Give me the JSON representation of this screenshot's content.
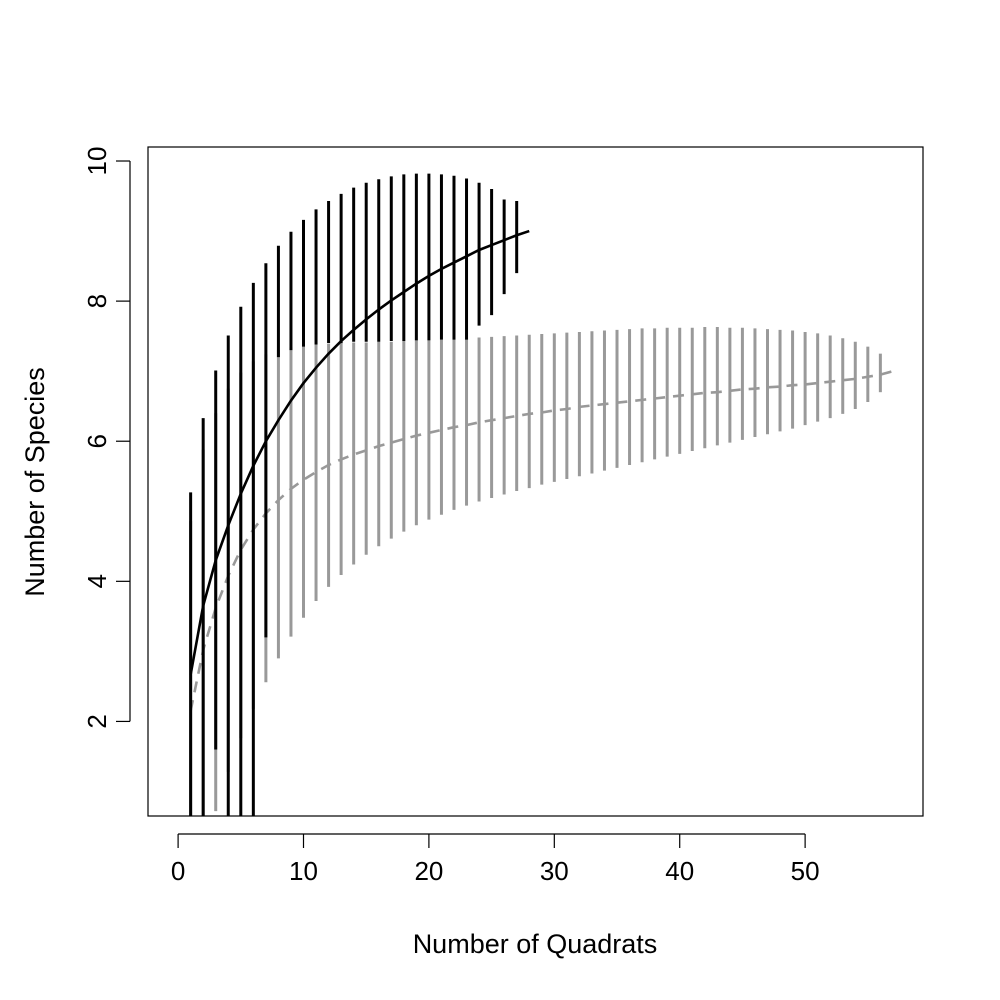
{
  "chart_data": {
    "type": "line",
    "title": "",
    "xlabel": "Number of Quadrats",
    "ylabel": "Number of Species",
    "xlim": [
      -2.4,
      59.4
    ],
    "ylim": [
      0.65,
      10.2
    ],
    "x_ticks": [
      0,
      10,
      20,
      30,
      40,
      50
    ],
    "y_ticks": [
      2,
      4,
      6,
      8,
      10
    ],
    "grid": false,
    "legend": "none",
    "series": [
      {
        "color": "#000000",
        "line_style": "solid",
        "x": [
          1,
          2,
          3,
          4,
          5,
          6,
          7,
          8,
          9,
          10,
          11,
          12,
          13,
          14,
          15,
          16,
          17,
          18,
          19,
          20,
          21,
          22,
          23,
          24,
          25,
          26,
          27,
          28
        ],
        "y": [
          2.67,
          3.65,
          4.3,
          4.8,
          5.25,
          5.65,
          6.0,
          6.3,
          6.58,
          6.83,
          7.05,
          7.25,
          7.43,
          7.59,
          7.74,
          7.88,
          8.01,
          8.13,
          8.25,
          8.36,
          8.46,
          8.55,
          8.64,
          8.73,
          8.8,
          8.87,
          8.94,
          9.0
        ],
        "error_lower": [
          0.0,
          0.0,
          1.6,
          0.0,
          0.0,
          0.0,
          3.2,
          7.2,
          7.3,
          7.35,
          7.38,
          7.4,
          7.4,
          7.42,
          7.42,
          7.42,
          7.43,
          7.43,
          7.44,
          7.44,
          7.45,
          7.45,
          7.45,
          7.65,
          7.8,
          8.1,
          8.4,
          null
        ],
        "error_upper": [
          5.27,
          6.33,
          7.01,
          7.51,
          7.92,
          8.26,
          8.54,
          8.79,
          8.99,
          9.16,
          9.31,
          9.43,
          9.53,
          9.62,
          9.69,
          9.74,
          9.78,
          9.81,
          9.82,
          9.82,
          9.81,
          9.79,
          9.75,
          9.69,
          9.6,
          9.45,
          9.43,
          null
        ]
      },
      {
        "color": "#999999",
        "line_style": "dashed",
        "x": [
          1,
          2,
          3,
          4,
          5,
          6,
          7,
          8,
          9,
          10,
          11,
          12,
          13,
          14,
          15,
          16,
          17,
          18,
          19,
          20,
          21,
          22,
          23,
          24,
          25,
          26,
          27,
          28,
          29,
          30,
          31,
          32,
          33,
          34,
          35,
          36,
          37,
          38,
          39,
          40,
          41,
          42,
          43,
          44,
          45,
          46,
          47,
          48,
          49,
          50,
          51,
          52,
          53,
          54,
          55,
          56,
          57
        ],
        "y": [
          2.15,
          3.02,
          3.62,
          4.08,
          4.45,
          4.74,
          4.97,
          5.16,
          5.32,
          5.45,
          5.56,
          5.66,
          5.74,
          5.81,
          5.87,
          5.93,
          5.98,
          6.03,
          6.08,
          6.12,
          6.16,
          6.2,
          6.23,
          6.27,
          6.3,
          6.33,
          6.36,
          6.39,
          6.41,
          6.44,
          6.46,
          6.49,
          6.51,
          6.53,
          6.55,
          6.57,
          6.59,
          6.61,
          6.63,
          6.65,
          6.67,
          6.69,
          6.7,
          6.72,
          6.74,
          6.75,
          6.77,
          6.78,
          6.8,
          6.81,
          6.83,
          6.85,
          6.87,
          6.89,
          6.92,
          6.95,
          7.0
        ],
        "error_lower": [
          0.65,
          0.65,
          0.72,
          1.28,
          1.76,
          2.18,
          2.56,
          2.9,
          3.21,
          3.48,
          3.72,
          3.92,
          4.09,
          4.24,
          4.38,
          4.5,
          4.61,
          4.71,
          4.8,
          4.88,
          4.95,
          5.02,
          5.08,
          5.14,
          5.19,
          5.24,
          5.29,
          5.33,
          5.38,
          5.42,
          5.46,
          5.5,
          5.54,
          5.58,
          5.62,
          5.66,
          5.7,
          5.74,
          5.78,
          5.82,
          5.86,
          5.9,
          5.94,
          5.98,
          6.02,
          6.06,
          6.1,
          6.14,
          6.18,
          6.23,
          6.28,
          6.33,
          6.39,
          6.46,
          6.56,
          6.7,
          null
        ],
        "error_upper": [
          4.86,
          5.88,
          6.4,
          6.75,
          6.98,
          7.14,
          7.24,
          7.3,
          7.34,
          7.36,
          7.38,
          7.39,
          7.4,
          7.41,
          7.41,
          7.42,
          7.42,
          7.43,
          7.44,
          7.44,
          7.45,
          7.46,
          7.47,
          7.48,
          7.49,
          7.5,
          7.51,
          7.52,
          7.53,
          7.54,
          7.55,
          7.56,
          7.57,
          7.58,
          7.59,
          7.6,
          7.61,
          7.61,
          7.62,
          7.62,
          7.62,
          7.63,
          7.63,
          7.62,
          7.62,
          7.61,
          7.6,
          7.59,
          7.58,
          7.56,
          7.54,
          7.51,
          7.47,
          7.42,
          7.35,
          7.25,
          null
        ]
      }
    ]
  }
}
